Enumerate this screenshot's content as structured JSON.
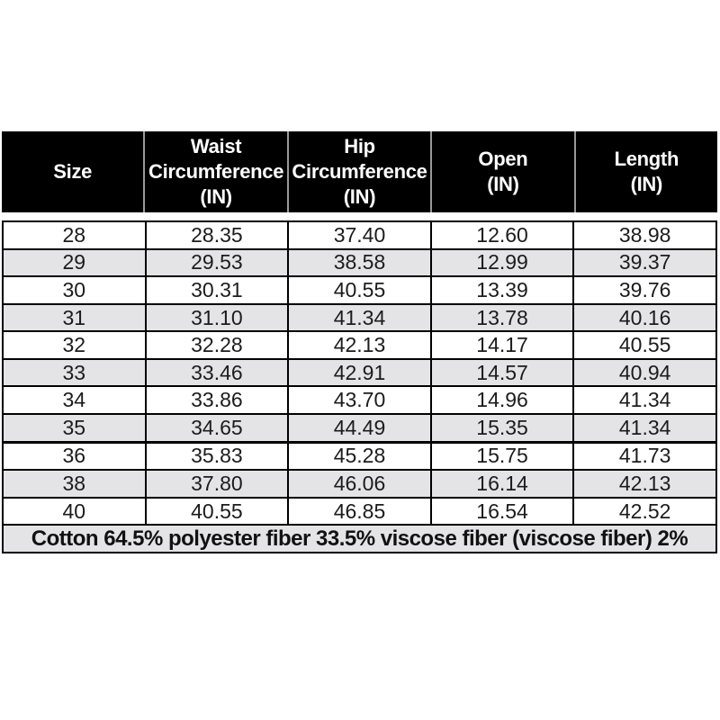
{
  "chart_data": {
    "type": "table",
    "title": "",
    "columns": [
      "Size",
      "Waist\nCircumference\n(IN)",
      "Hip\nCircumference\n(IN)",
      "Open\n(IN)",
      "Length\n(IN)"
    ],
    "rows": [
      [
        "28",
        "28.35",
        "37.40",
        "12.60",
        "38.98"
      ],
      [
        "29",
        "29.53",
        "38.58",
        "12.99",
        "39.37"
      ],
      [
        "30",
        "30.31",
        "40.55",
        "13.39",
        "39.76"
      ],
      [
        "31",
        "31.10",
        "41.34",
        "13.78",
        "40.16"
      ],
      [
        "32",
        "32.28",
        "42.13",
        "14.17",
        "40.55"
      ],
      [
        "33",
        "33.46",
        "42.91",
        "14.57",
        "40.94"
      ],
      [
        "34",
        "33.86",
        "43.70",
        "14.96",
        "41.34"
      ],
      [
        "35",
        "34.65",
        "44.49",
        "15.35",
        "41.34"
      ],
      [
        "36",
        "35.83",
        "45.28",
        "15.75",
        "41.73"
      ],
      [
        "38",
        "37.80",
        "46.06",
        "16.14",
        "42.13"
      ],
      [
        "40",
        "40.55",
        "46.85",
        "16.54",
        "42.52"
      ]
    ],
    "footer": "Cotton 64.5% polyester fiber 33.5% viscose fiber (viscose fiber) 2%",
    "layout": {
      "thick_border_above_row_index": 8,
      "shaded_row_parity": "odd",
      "grid": "on",
      "legend": "none"
    }
  },
  "colors": {
    "header_bg": "#000000",
    "header_text": "#ffffff",
    "header_divider": "#999999",
    "row_bg": "#ffffff",
    "row_alt_bg": "#e4e4e6",
    "border": "#000000",
    "body_text": "#1c1c1c"
  }
}
